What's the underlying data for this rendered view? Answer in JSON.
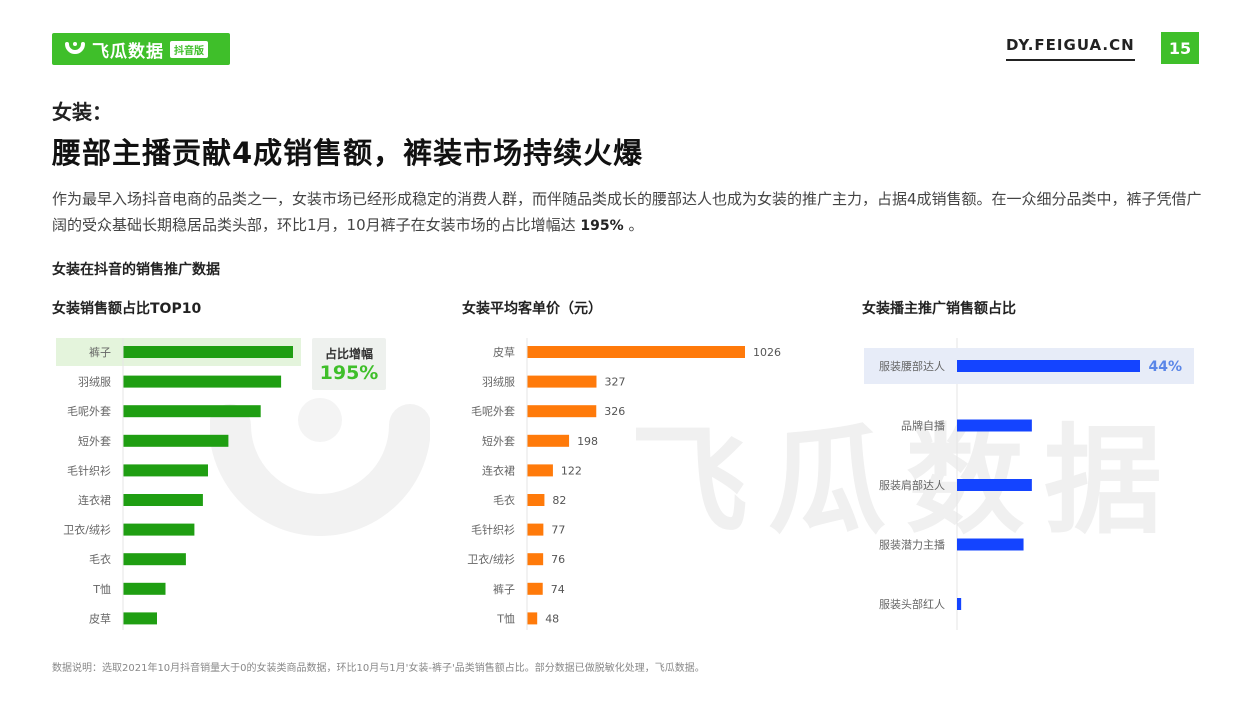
{
  "brand": {
    "name": "飞瓜数据",
    "badge": "抖音版",
    "site": "DY.FEIGUA.CN",
    "page": "15",
    "watermark": "飞瓜数据"
  },
  "kicker": "女装：",
  "headline": "腰部主播贡献4成销售额，裤装市场持续火爆",
  "description": {
    "text": "作为最早入场抖音电商的品类之一，女装市场已经形成稳定的消费人群，而伴随品类成长的腰部达人也成为女装的推广主力，占据4成销售额。在一众细分品类中，裤子凭借广阔的受众基础长期稳居品类头部，环比1月，10月裤子在女装市场的占比增幅达 ",
    "highlight": "195%",
    "tail": " 。"
  },
  "section_title": "女装在抖音的销售推广数据",
  "callout": {
    "label": "占比增幅",
    "value": "195%"
  },
  "footnote": "数据说明：选取2021年10月抖音销量大于0的女装类商品数据，环比10月与1月'女装-裤子'品类销售额占比。部分数据已做脱敏化处理，飞瓜数据。",
  "colors": {
    "brand": "#3fbf2a",
    "green_bar": "#1f9e12",
    "orange_bar": "#ff7a0a",
    "blue_bar": "#1444ff",
    "highlight_bg": "#e4f4dc",
    "blue_highlight_bg": "#e7ecf8"
  },
  "chart_data": [
    {
      "type": "bar",
      "title": "女装销售额占比TOP10",
      "orientation": "horizontal",
      "categories": [
        "裤子",
        "羽绒服",
        "毛呢外套",
        "短外套",
        "毛针织衫",
        "连衣裙",
        "卫衣/绒衫",
        "毛衣",
        "T恤",
        "皮草"
      ],
      "values": [
        100,
        93,
        81,
        62,
        50,
        47,
        42,
        37,
        25,
        20
      ],
      "value_labels_shown": false,
      "highlighted_category": "裤子"
    },
    {
      "type": "bar",
      "title": "女装平均客单价（元）",
      "orientation": "horizontal",
      "categories": [
        "皮草",
        "羽绒服",
        "毛呢外套",
        "短外套",
        "连衣裙",
        "毛衣",
        "毛针织衫",
        "卫衣/绒衫",
        "裤子",
        "T恤"
      ],
      "values": [
        1026,
        327,
        326,
        198,
        122,
        82,
        77,
        76,
        74,
        48
      ],
      "value_labels_shown": true
    },
    {
      "type": "bar",
      "title": "女装播主推广销售额占比",
      "orientation": "horizontal",
      "categories": [
        "服装腰部达人",
        "品牌自播",
        "服装肩部达人",
        "服装潜力主播",
        "服装头部红人"
      ],
      "values": [
        44,
        18,
        18,
        16,
        1
      ],
      "value_labels": [
        "44%",
        "",
        "",
        "",
        ""
      ],
      "highlighted_category": "服装腰部达人"
    }
  ]
}
